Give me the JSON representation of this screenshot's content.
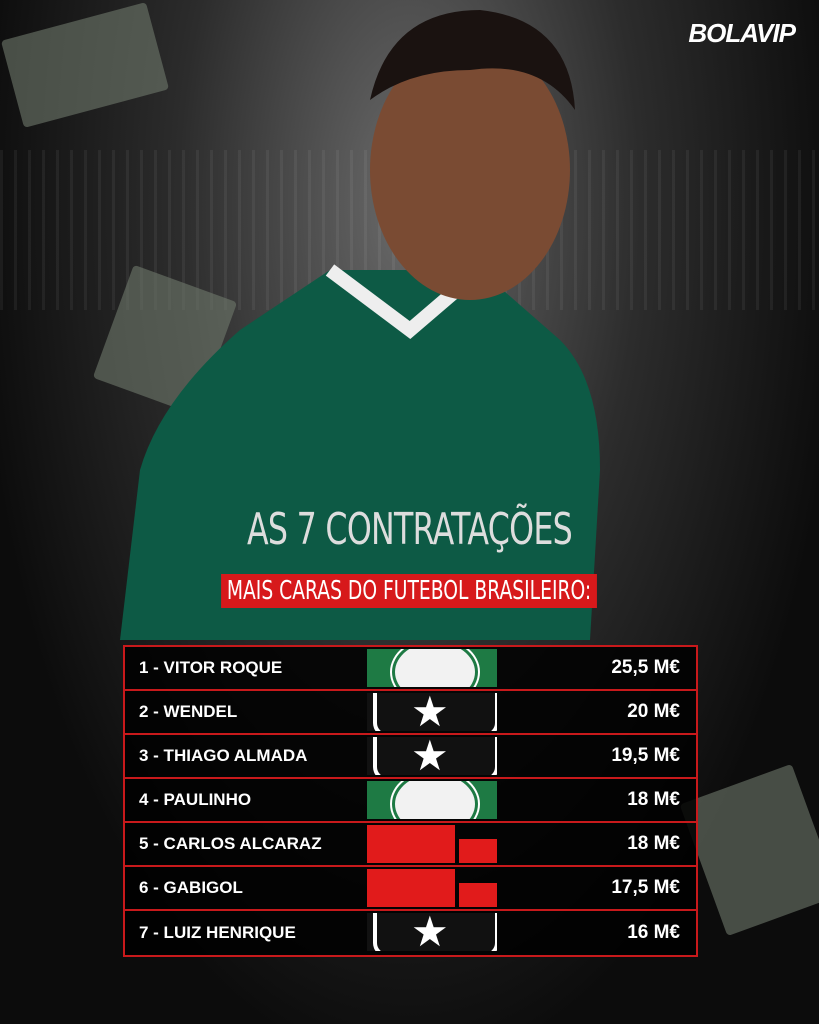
{
  "brand": "BOLAVIP",
  "title_line1": "AS 7 CONTRATAÇÕES",
  "title_line2": "MAIS CARAS DO FUTEBOL BRASILEIRO:",
  "colors": {
    "accent": "#d7191b",
    "background": "#0b0b0b"
  },
  "rows": [
    {
      "name": "1 - VITOR ROQUE",
      "club": "palmeiras",
      "value": "25,5 M€"
    },
    {
      "name": "2 - WENDEL",
      "club": "botafogo",
      "value": "20 M€"
    },
    {
      "name": "3 - THIAGO ALMADA",
      "club": "botafogo",
      "value": "19,5 M€"
    },
    {
      "name": "4 - PAULINHO",
      "club": "palmeiras",
      "value": "18 M€"
    },
    {
      "name": "5 - CARLOS ALCARAZ",
      "club": "flamengo",
      "value": "18 M€"
    },
    {
      "name": "6 - GABIGOL",
      "club": "flamengo",
      "value": "17,5 M€"
    },
    {
      "name": "7 - LUIZ HENRIQUE",
      "club": "botafogo",
      "value": "16 M€"
    }
  ]
}
